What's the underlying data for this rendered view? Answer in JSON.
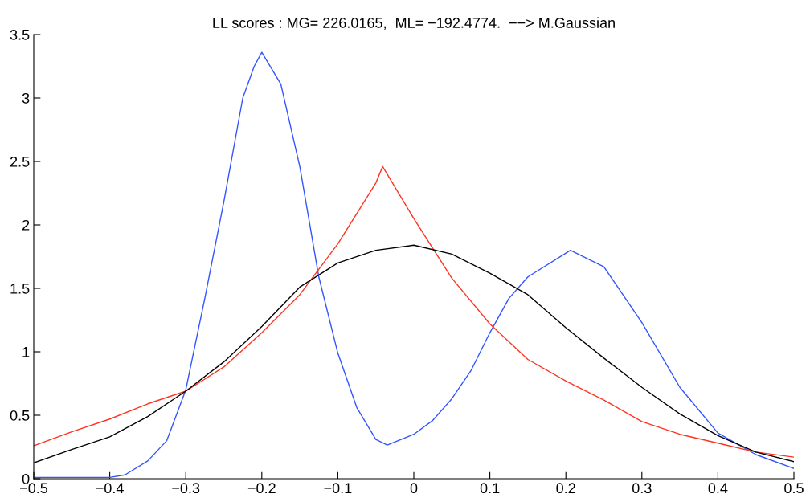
{
  "chart_data": {
    "type": "line",
    "title": "LL scores : MG= 226.0165,  ML= −192.4774.  −−> M.Gaussian",
    "xlim": [
      -0.5,
      0.5
    ],
    "ylim": [
      0,
      3.5
    ],
    "xticks": [
      {
        "value": -0.5,
        "label": "−0.5"
      },
      {
        "value": -0.4,
        "label": "−0.4"
      },
      {
        "value": -0.3,
        "label": "−0.3"
      },
      {
        "value": -0.2,
        "label": "−0.2"
      },
      {
        "value": -0.1,
        "label": "−0.1"
      },
      0,
      0.1,
      0.2,
      0.3,
      0.4,
      0.5
    ],
    "yticks": [
      0,
      0.5,
      1,
      1.5,
      2,
      2.5,
      3,
      3.5
    ],
    "grid": false,
    "legend": false,
    "marker": "none",
    "line_style": "solid",
    "series": [
      {
        "color": "#3355ff",
        "x": [
          -0.5,
          -0.45,
          -0.4,
          -0.38,
          -0.35,
          -0.325,
          -0.3,
          -0.275,
          -0.25,
          -0.225,
          -0.21,
          -0.2,
          -0.175,
          -0.15,
          -0.125,
          -0.1,
          -0.075,
          -0.05,
          -0.035,
          0,
          0.025,
          0.05,
          0.075,
          0.1,
          0.125,
          0.15,
          0.206,
          0.25,
          0.3,
          0.35,
          0.4,
          0.45,
          0.5
        ],
        "values": [
          0.01,
          0.01,
          0.01,
          0.03,
          0.14,
          0.3,
          0.7,
          1.42,
          2.18,
          3.0,
          3.25,
          3.36,
          3.11,
          2.46,
          1.59,
          0.99,
          0.56,
          0.31,
          0.265,
          0.35,
          0.46,
          0.63,
          0.85,
          1.15,
          1.42,
          1.59,
          1.8,
          1.67,
          1.23,
          0.72,
          0.36,
          0.19,
          0.08
        ]
      },
      {
        "color": "#ff3322",
        "x": [
          -0.5,
          -0.45,
          -0.4,
          -0.35,
          -0.3,
          -0.25,
          -0.2,
          -0.15,
          -0.1,
          -0.05,
          -0.041,
          0,
          0.05,
          0.1,
          0.15,
          0.2,
          0.25,
          0.3,
          0.35,
          0.4,
          0.45,
          0.5
        ],
        "values": [
          0.26,
          0.37,
          0.47,
          0.59,
          0.69,
          0.88,
          1.15,
          1.45,
          1.85,
          2.33,
          2.46,
          2.05,
          1.58,
          1.22,
          0.94,
          0.77,
          0.62,
          0.45,
          0.35,
          0.28,
          0.21,
          0.17
        ]
      },
      {
        "color": "#000000",
        "x": [
          -0.5,
          -0.45,
          -0.4,
          -0.35,
          -0.3,
          -0.25,
          -0.2,
          -0.15,
          -0.1,
          -0.05,
          0,
          0.05,
          0.1,
          0.15,
          0.2,
          0.25,
          0.3,
          0.35,
          0.4,
          0.45,
          0.5
        ],
        "values": [
          0.125,
          0.23,
          0.33,
          0.49,
          0.69,
          0.92,
          1.2,
          1.51,
          1.7,
          1.8,
          1.84,
          1.77,
          1.62,
          1.45,
          1.19,
          0.95,
          0.72,
          0.51,
          0.34,
          0.21,
          0.135
        ]
      }
    ]
  }
}
